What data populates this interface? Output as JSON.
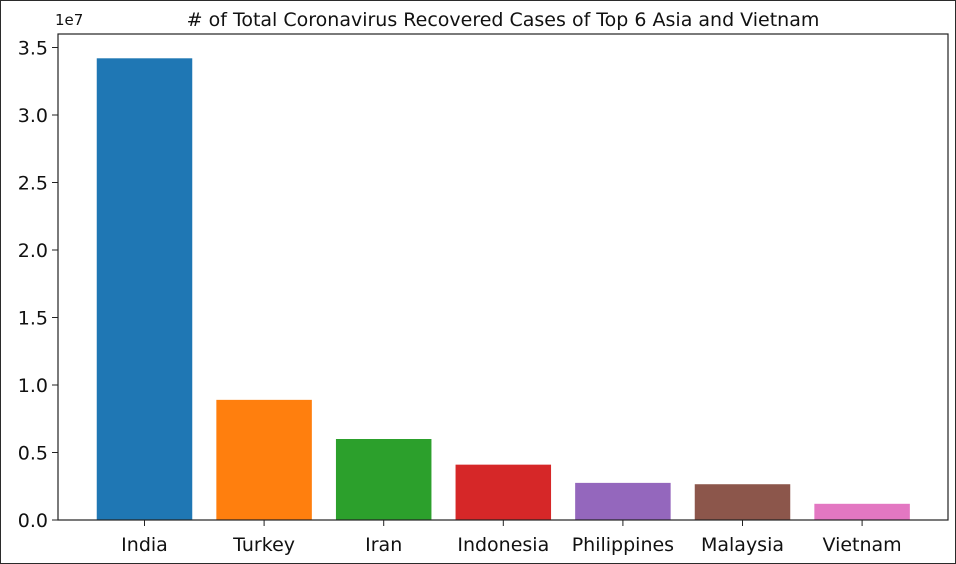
{
  "chart_data": {
    "type": "bar",
    "title": "# of Total Coronavirus Recovered Cases of Top 6 Asia and Vietnam",
    "xlabel": "",
    "ylabel": "",
    "y_offset_label": "1e7",
    "categories": [
      "India",
      "Turkey",
      "Iran",
      "Indonesia",
      "Philippines",
      "Malaysia",
      "Vietnam"
    ],
    "values": [
      34200000,
      8900000,
      6000000,
      4100000,
      2750000,
      2650000,
      1200000
    ],
    "colors": [
      "#1f77b4",
      "#ff7f0e",
      "#2ca02c",
      "#d62728",
      "#9467bd",
      "#8c564b",
      "#e377c2"
    ],
    "ylim": [
      0,
      36000000
    ],
    "yticks": [
      0,
      5000000,
      10000000,
      15000000,
      20000000,
      25000000,
      30000000,
      35000000
    ],
    "ytick_labels": [
      "0.0",
      "0.5",
      "1.0",
      "1.5",
      "2.0",
      "2.5",
      "3.0",
      "3.5"
    ],
    "grid": false,
    "legend": "none"
  }
}
